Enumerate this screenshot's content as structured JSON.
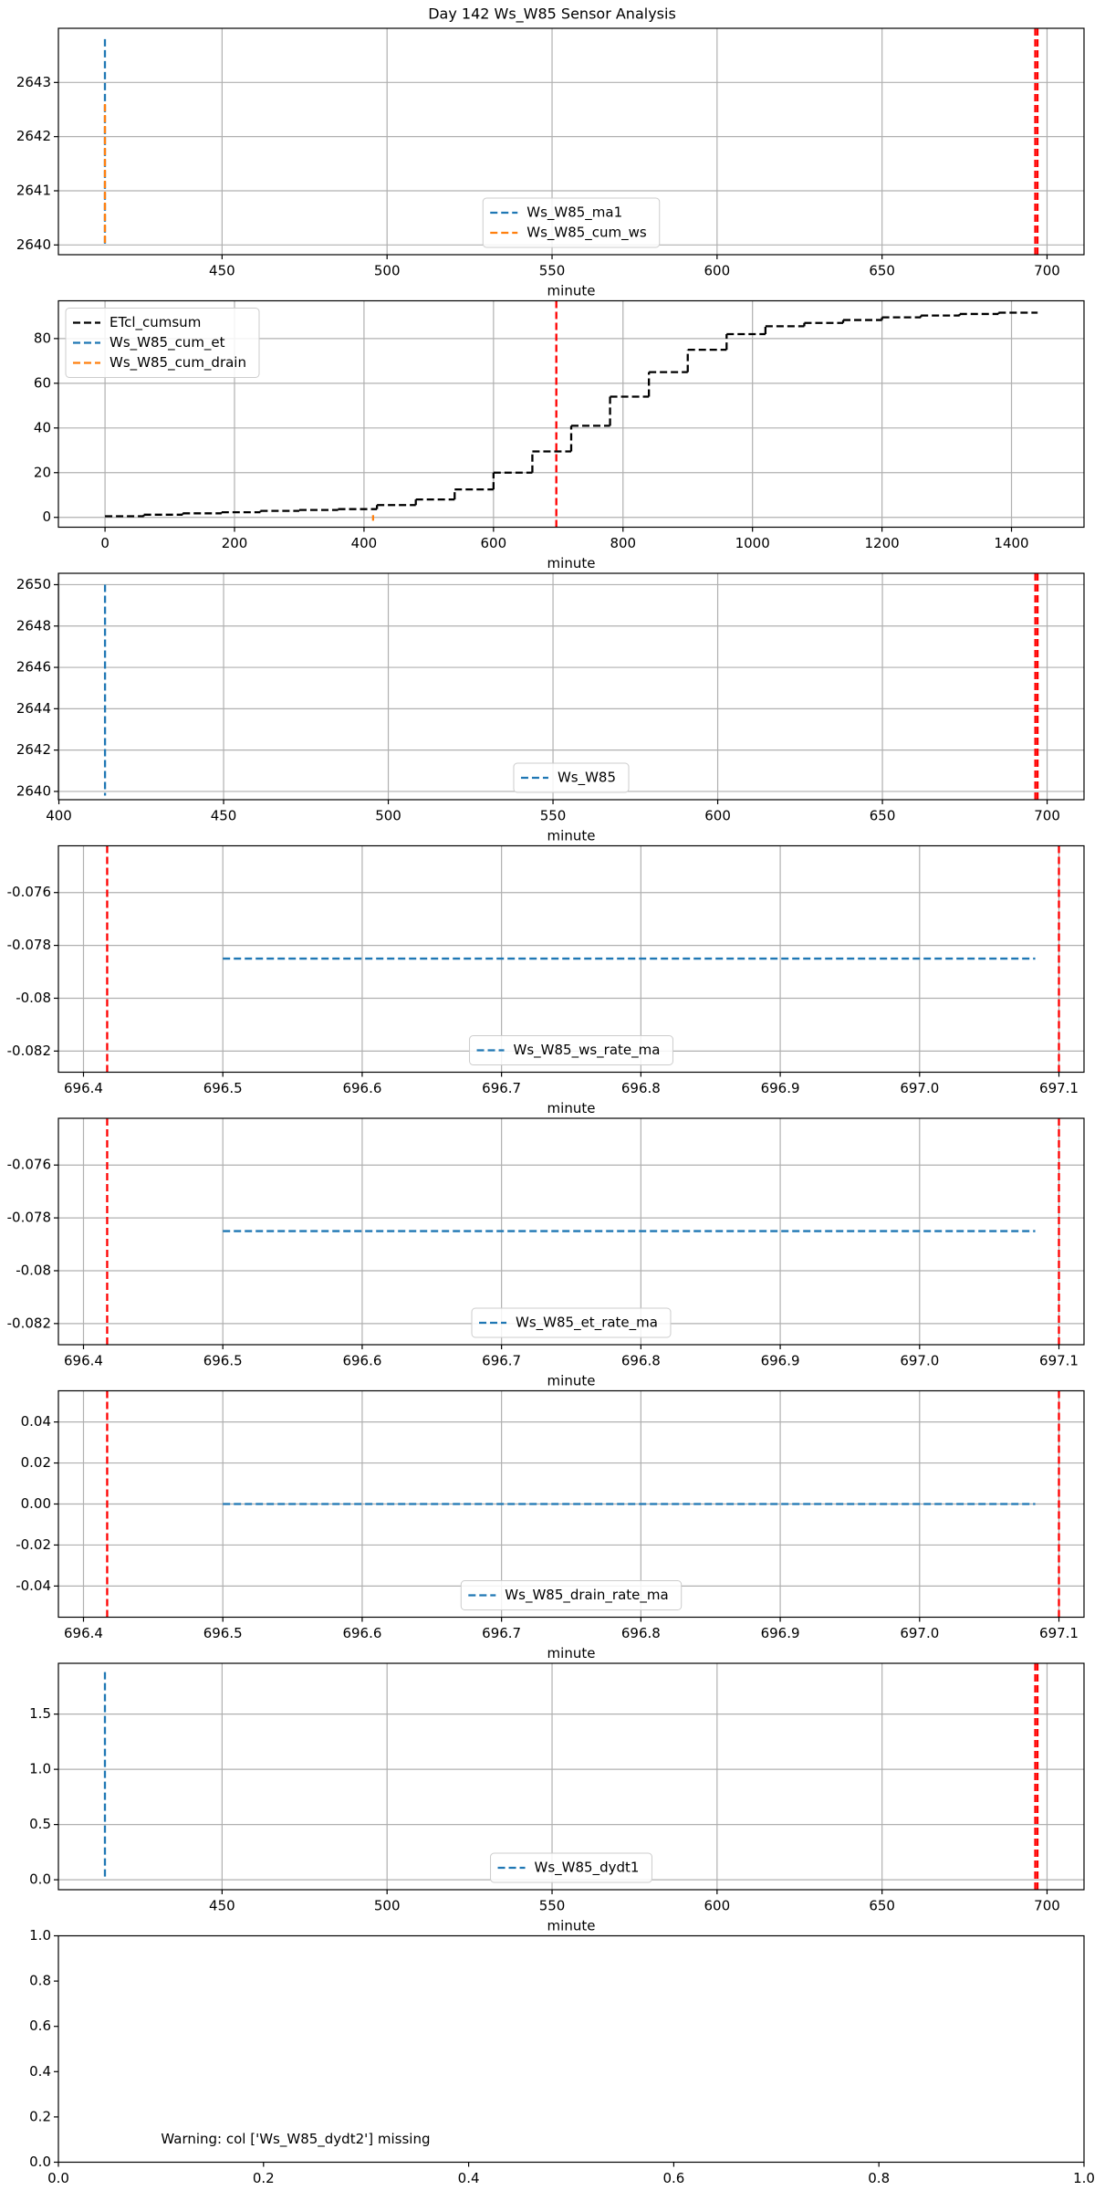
{
  "title": "Day 142 Ws_W85 Sensor Analysis",
  "chart_data": [
    {
      "type": "line",
      "xlabel": "minute",
      "xlim": [
        400.4,
        711.2
      ],
      "ylim": [
        2639.82,
        2644.0
      ],
      "xticks": [
        450,
        500,
        550,
        600,
        650,
        700
      ],
      "yticks": [
        2640,
        2641,
        2642,
        2643
      ],
      "grid": true,
      "legend": "lower center",
      "linestyle": "dashed",
      "vlines": [
        696.42,
        697.1
      ],
      "vline_color": "#ff0000",
      "series": [
        {
          "name": "Ws_W85_ma1",
          "color": "#1f77b4",
          "x": [
            414.5,
            414.5
          ],
          "values": [
            2643.8,
            2640.0
          ]
        },
        {
          "name": "Ws_W85_cum_ws",
          "color": "#ff7f0e",
          "x": [
            414.5,
            414.5
          ],
          "values": [
            2642.6,
            2640.0
          ]
        }
      ]
    },
    {
      "type": "line",
      "xlabel": "minute",
      "xlim": [
        -72,
        1512
      ],
      "ylim": [
        -4.4,
        96.9
      ],
      "xticks": [
        0,
        200,
        400,
        600,
        800,
        1000,
        1200,
        1400
      ],
      "yticks": [
        0,
        20,
        40,
        60,
        80
      ],
      "grid": true,
      "legend": "upper left",
      "linestyle": "dashed",
      "vlines": [
        697
      ],
      "vline_color": "#ff0000",
      "series": [
        {
          "name": "ETcl_cumsum",
          "color": "#000000",
          "drawstyle": "steps-post",
          "x": [
            0,
            60,
            120,
            180,
            240,
            300,
            360,
            420,
            480,
            540,
            600,
            660,
            720,
            780,
            840,
            900,
            960,
            1020,
            1080,
            1140,
            1200,
            1260,
            1320,
            1380,
            1440
          ],
          "values": [
            0.5,
            1.2,
            1.8,
            2.3,
            2.9,
            3.3,
            3.7,
            5.5,
            8,
            12.5,
            20,
            29.5,
            41,
            54,
            65,
            75,
            82,
            85.5,
            87,
            88.3,
            89.5,
            90.3,
            91,
            91.6,
            91.6
          ]
        },
        {
          "name": "Ws_W85_cum_et",
          "color": "#1f77b4",
          "x": [
            414,
            414
          ],
          "values": [
            0,
            0
          ]
        },
        {
          "name": "Ws_W85_cum_drain",
          "color": "#ff7f0e",
          "x": [
            414,
            414
          ],
          "values": [
            1.0,
            -1.5
          ]
        }
      ]
    },
    {
      "type": "line",
      "xlabel": "minute",
      "xlim": [
        399.85,
        711.2
      ],
      "ylim": [
        2639.6,
        2650.55
      ],
      "xticks": [
        400,
        450,
        500,
        550,
        600,
        650,
        700
      ],
      "yticks": [
        2640,
        2642,
        2644,
        2646,
        2648,
        2650
      ],
      "grid": true,
      "legend": "lower center",
      "linestyle": "dashed",
      "vlines": [
        696.42,
        697.1
      ],
      "vline_color": "#ff0000",
      "series": [
        {
          "name": "Ws_W85",
          "color": "#1f77b4",
          "x": [
            414,
            414
          ],
          "values": [
            2650.0,
            2639.8
          ]
        }
      ]
    },
    {
      "type": "line",
      "xlabel": "minute",
      "xlim": [
        696.382,
        697.118
      ],
      "ylim": [
        -0.0828,
        -0.07423
      ],
      "xticks": [
        696.4,
        696.5,
        696.6,
        696.7,
        696.8,
        696.9,
        {
          "value": 697.0,
          "label": "697.0"
        },
        697.1
      ],
      "yticks": [
        -0.082,
        -0.08,
        -0.078,
        -0.076
      ],
      "grid": true,
      "legend": "lower center",
      "linestyle": "dashed",
      "vlines": [
        696.417,
        697.1
      ],
      "vline_color": "#ff0000",
      "series": [
        {
          "name": "Ws_W85_ws_rate_ma",
          "color": "#1f77b4",
          "x": [
            696.5,
            697.083
          ],
          "values": [
            -0.0785,
            -0.0785
          ]
        }
      ]
    },
    {
      "type": "line",
      "xlabel": "minute",
      "xlim": [
        696.382,
        697.118
      ],
      "ylim": [
        -0.0828,
        -0.07423
      ],
      "xticks": [
        696.4,
        696.5,
        696.6,
        696.7,
        696.8,
        696.9,
        {
          "value": 697.0,
          "label": "697.0"
        },
        697.1
      ],
      "yticks": [
        -0.082,
        -0.08,
        -0.078,
        -0.076
      ],
      "grid": true,
      "legend": "lower center",
      "linestyle": "dashed",
      "vlines": [
        696.417,
        697.1
      ],
      "vline_color": "#ff0000",
      "series": [
        {
          "name": "Ws_W85_et_rate_ma",
          "color": "#1f77b4",
          "x": [
            696.5,
            697.083
          ],
          "values": [
            -0.0785,
            -0.0785
          ]
        }
      ]
    },
    {
      "type": "line",
      "xlabel": "minute",
      "xlim": [
        696.382,
        697.118
      ],
      "ylim": [
        -0.0552,
        0.0552
      ],
      "xticks": [
        696.4,
        696.5,
        696.6,
        696.7,
        696.8,
        696.9,
        {
          "value": 697.0,
          "label": "697.0"
        },
        697.1
      ],
      "yticks": [
        -0.04,
        -0.02,
        {
          "value": 0,
          "label": "0.00"
        },
        0.02,
        0.04
      ],
      "grid": true,
      "legend": "lower center",
      "linestyle": "dashed",
      "vlines": [
        696.417,
        697.1
      ],
      "vline_color": "#ff0000",
      "series": [
        {
          "name": "Ws_W85_drain_rate_ma",
          "color": "#1f77b4",
          "x": [
            696.5,
            697.083
          ],
          "values": [
            0,
            0
          ]
        }
      ]
    },
    {
      "type": "line",
      "xlabel": "minute",
      "xlim": [
        400.4,
        711.2
      ],
      "ylim": [
        -0.09,
        1.96
      ],
      "xticks": [
        450,
        500,
        550,
        600,
        650,
        700
      ],
      "yticks": [
        {
          "value": 0,
          "label": "0.0"
        },
        0.5,
        {
          "value": 1,
          "label": "1.0"
        },
        1.5
      ],
      "grid": true,
      "legend": "lower center",
      "linestyle": "dashed",
      "vlines": [
        696.42,
        697.1
      ],
      "vline_color": "#ff0000",
      "series": [
        {
          "name": "Ws_W85_dydt1",
          "color": "#1f77b4",
          "x": [
            414.5,
            414.5
          ],
          "values": [
            1.88,
            0
          ]
        }
      ]
    },
    {
      "type": "line",
      "xlim": [
        0,
        1
      ],
      "ylim": [
        0,
        1
      ],
      "xticks": [
        {
          "value": 0,
          "label": "0.0"
        },
        0.2,
        0.4,
        0.6,
        0.8,
        {
          "value": 1,
          "label": "1.0"
        }
      ],
      "yticks": [
        {
          "value": 0,
          "label": "0.0"
        },
        0.2,
        0.4,
        0.6,
        0.8,
        {
          "value": 1,
          "label": "1.0"
        }
      ],
      "grid": false,
      "annotation": {
        "text": "Warning: col ['Ws_W85_dydt2'] missing",
        "x": 0.1,
        "y": 0.1
      }
    }
  ]
}
